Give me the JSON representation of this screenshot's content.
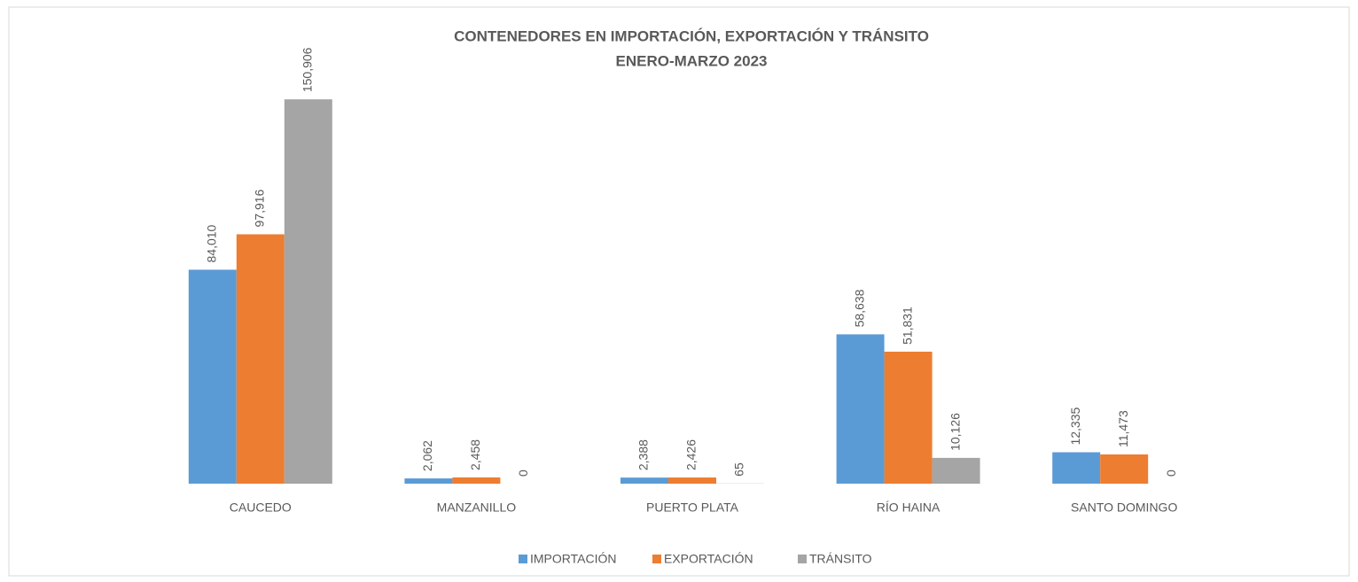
{
  "chart_data": {
    "type": "bar",
    "title": [
      "CONTENEDORES  EN IMPORTACIÓN, EXPORTACIÓN Y TRÁNSITO",
      "ENERO-MARZO 2023"
    ],
    "categories": [
      "CAUCEDO",
      "MANZANILLO",
      "PUERTO  PLATA",
      "RÍO HAINA",
      "SANTO DOMINGO"
    ],
    "series": [
      {
        "name": "IMPORTACIÓN",
        "color": "#5b9bd5",
        "values": [
          84010,
          2062,
          2388,
          58638,
          12335
        ],
        "value_labels": [
          "84,010",
          "2,062",
          "2,388",
          "58,638",
          "12,335"
        ]
      },
      {
        "name": "EXPORTACIÓN",
        "color": "#ed7d31",
        "values": [
          97916,
          2458,
          2426,
          51831,
          11473
        ],
        "value_labels": [
          "97,916",
          "2,458",
          "2,426",
          "51,831",
          "11,473"
        ]
      },
      {
        "name": "TRÁNSITO",
        "color": "#a5a5a5",
        "values": [
          150906,
          0,
          65,
          10126,
          0
        ],
        "value_labels": [
          "150,906",
          "0",
          "65",
          "10,126",
          "0"
        ]
      }
    ],
    "ylim": [
      0,
      160000
    ],
    "legend": "bottom"
  }
}
